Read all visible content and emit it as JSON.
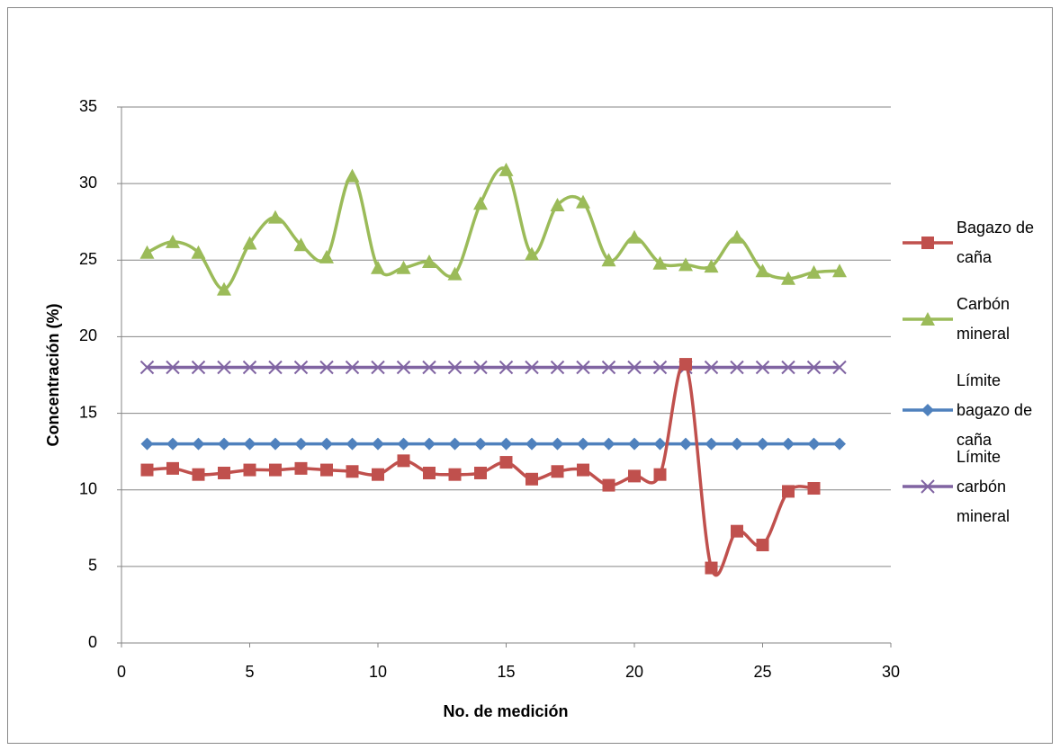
{
  "chart_data": {
    "type": "line",
    "x_label": "No. de medición",
    "y_label": "Concentración (%)",
    "x": [
      1,
      2,
      3,
      4,
      5,
      6,
      7,
      8,
      9,
      10,
      11,
      12,
      13,
      14,
      15,
      16,
      17,
      18,
      19,
      20,
      21,
      22,
      23,
      24,
      25,
      26,
      27,
      28
    ],
    "xlim": [
      0,
      30
    ],
    "xticks": [
      0,
      5,
      10,
      15,
      20,
      25,
      30
    ],
    "ylim": [
      0,
      35
    ],
    "yticks": [
      0,
      5,
      10,
      15,
      20,
      25,
      30,
      35
    ],
    "grid": true,
    "legend": "right",
    "series": [
      {
        "name": "Bagazo de caña",
        "color": "#c0504d",
        "marker": "square",
        "smooth": true,
        "values": [
          11.3,
          11.4,
          11.0,
          11.1,
          11.3,
          11.3,
          11.4,
          11.3,
          11.2,
          11.0,
          11.9,
          11.1,
          11.0,
          11.1,
          11.8,
          10.7,
          11.2,
          11.3,
          10.3,
          10.9,
          11.0,
          18.2,
          4.9,
          7.3,
          6.4,
          9.9,
          10.1,
          null
        ]
      },
      {
        "name": "Carbón mineral",
        "color": "#9bbb59",
        "marker": "triangle",
        "smooth": true,
        "values": [
          25.5,
          26.2,
          25.5,
          23.1,
          26.1,
          27.8,
          26.0,
          25.2,
          30.5,
          24.5,
          24.5,
          24.9,
          24.1,
          28.7,
          30.9,
          25.4,
          28.6,
          28.8,
          25.0,
          26.5,
          24.8,
          24.7,
          24.6,
          26.5,
          24.3,
          23.8,
          24.2,
          24.3
        ]
      },
      {
        "name": "Límite bagazo de caña",
        "color": "#4f81bd",
        "marker": "diamond",
        "smooth": false,
        "values": [
          13,
          13,
          13,
          13,
          13,
          13,
          13,
          13,
          13,
          13,
          13,
          13,
          13,
          13,
          13,
          13,
          13,
          13,
          13,
          13,
          13,
          13,
          13,
          13,
          13,
          13,
          13,
          13
        ]
      },
      {
        "name": "Límite carbón mineral",
        "color": "#8064a2",
        "marker": "x",
        "smooth": false,
        "values": [
          18,
          18,
          18,
          18,
          18,
          18,
          18,
          18,
          18,
          18,
          18,
          18,
          18,
          18,
          18,
          18,
          18,
          18,
          18,
          18,
          18,
          18,
          18,
          18,
          18,
          18,
          18,
          18
        ]
      }
    ]
  }
}
